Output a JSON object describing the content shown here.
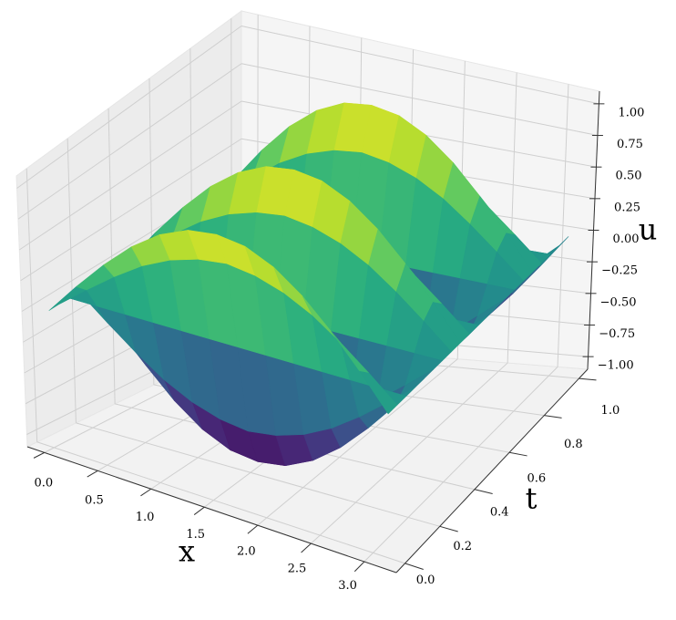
{
  "chart_data": {
    "type": "surface3d",
    "colormap": "viridis",
    "grid": true,
    "xlabel": "x",
    "tlabel": "t",
    "zlabel": "u",
    "x": [
      0,
      0.2618,
      0.5236,
      0.7854,
      1.0472,
      1.309,
      1.5708,
      1.8326,
      2.0944,
      2.3562,
      2.618,
      2.8798,
      3.1416
    ],
    "t": [
      0,
      0.05,
      0.1,
      0.15,
      0.2,
      0.25,
      0.3,
      0.35,
      0.4,
      0.45,
      0.5,
      0.55,
      0.6,
      0.65,
      0.7,
      0.75,
      0.8,
      0.85,
      0.9,
      0.95,
      1
    ],
    "z": [
      [
        0,
        0.26,
        0.5,
        0.71,
        0.87,
        0.97,
        1,
        0.97,
        0.87,
        0.71,
        0.5,
        0.26,
        0
      ],
      [
        0,
        0.18,
        0.35,
        0.5,
        0.61,
        0.68,
        0.71,
        0.68,
        0.61,
        0.5,
        0.35,
        0.18,
        0
      ],
      [
        0,
        0,
        0,
        0,
        0,
        0,
        0,
        0,
        0,
        0,
        0,
        0,
        0
      ],
      [
        0,
        -0.18,
        -0.35,
        -0.5,
        -0.61,
        -0.68,
        -0.71,
        -0.68,
        -0.61,
        -0.5,
        -0.35,
        -0.18,
        0
      ],
      [
        0,
        -0.26,
        -0.5,
        -0.71,
        -0.87,
        -0.97,
        -1,
        -0.97,
        -0.87,
        -0.71,
        -0.5,
        -0.26,
        0
      ],
      [
        0,
        -0.18,
        -0.35,
        -0.5,
        -0.61,
        -0.68,
        -0.71,
        -0.68,
        -0.61,
        -0.5,
        -0.35,
        -0.18,
        0
      ],
      [
        0,
        0,
        0,
        0,
        0,
        0,
        0,
        0,
        0,
        0,
        0,
        0,
        0
      ],
      [
        0,
        0.18,
        0.35,
        0.5,
        0.61,
        0.68,
        0.71,
        0.68,
        0.61,
        0.5,
        0.35,
        0.18,
        0
      ],
      [
        0,
        0.26,
        0.5,
        0.71,
        0.87,
        0.97,
        1,
        0.97,
        0.87,
        0.71,
        0.5,
        0.26,
        0
      ],
      [
        0,
        0.18,
        0.35,
        0.5,
        0.61,
        0.68,
        0.71,
        0.68,
        0.61,
        0.5,
        0.35,
        0.18,
        0
      ],
      [
        0,
        0,
        0,
        0,
        0,
        0,
        0,
        0,
        0,
        0,
        0,
        0,
        0
      ],
      [
        0,
        -0.18,
        -0.35,
        -0.5,
        -0.61,
        -0.68,
        -0.71,
        -0.68,
        -0.61,
        -0.5,
        -0.35,
        -0.18,
        0
      ],
      [
        0,
        -0.26,
        -0.5,
        -0.71,
        -0.87,
        -0.97,
        -1,
        -0.97,
        -0.87,
        -0.71,
        -0.5,
        -0.26,
        0
      ],
      [
        0,
        -0.18,
        -0.35,
        -0.5,
        -0.61,
        -0.68,
        -0.71,
        -0.68,
        -0.61,
        -0.5,
        -0.35,
        -0.18,
        0
      ],
      [
        0,
        0,
        0,
        0,
        0,
        0,
        0,
        0,
        0,
        0,
        0,
        0,
        0
      ],
      [
        0,
        0.18,
        0.35,
        0.5,
        0.61,
        0.68,
        0.71,
        0.68,
        0.61,
        0.5,
        0.35,
        0.18,
        0
      ],
      [
        0,
        0.26,
        0.5,
        0.71,
        0.87,
        0.97,
        1,
        0.97,
        0.87,
        0.71,
        0.5,
        0.26,
        0
      ],
      [
        0,
        0.18,
        0.35,
        0.5,
        0.61,
        0.68,
        0.71,
        0.68,
        0.61,
        0.5,
        0.35,
        0.18,
        0
      ],
      [
        0,
        0,
        0,
        0,
        0,
        0,
        0,
        0,
        0,
        0,
        0,
        0,
        0
      ],
      [
        0,
        -0.18,
        -0.35,
        -0.5,
        -0.61,
        -0.68,
        -0.71,
        -0.68,
        -0.61,
        -0.5,
        -0.35,
        -0.18,
        0
      ],
      [
        0,
        -0.26,
        -0.5,
        -0.71,
        -0.87,
        -0.97,
        -1,
        -0.97,
        -0.87,
        -0.71,
        -0.5,
        -0.26,
        0
      ]
    ],
    "xlim": [
      -0.16,
      3.3
    ],
    "tlim": [
      -0.05,
      1.05
    ],
    "zlim": [
      -1.1,
      1.1
    ],
    "xticks": [
      {
        "value": 0,
        "label": "0.0"
      },
      0.5,
      {
        "value": 1,
        "label": "1.0"
      },
      1.5,
      {
        "value": 2,
        "label": "2.0"
      },
      2.5,
      {
        "value": 3,
        "label": "3.0"
      }
    ],
    "tticks": [
      {
        "value": 0,
        "label": "0.0"
      },
      0.2,
      0.4,
      0.6,
      0.8,
      {
        "value": 1,
        "label": "1.0"
      }
    ],
    "zticks": [
      {
        "value": -1,
        "label": "−1.00"
      },
      {
        "value": -0.75,
        "label": "−0.75"
      },
      {
        "value": -0.5,
        "label": "−0.50"
      },
      {
        "value": -0.25,
        "label": "−0.25"
      },
      {
        "value": 0,
        "label": "0.00"
      },
      0.25,
      {
        "value": 0.5,
        "label": "0.50"
      },
      0.75,
      {
        "value": 1,
        "label": "1.00"
      }
    ]
  }
}
